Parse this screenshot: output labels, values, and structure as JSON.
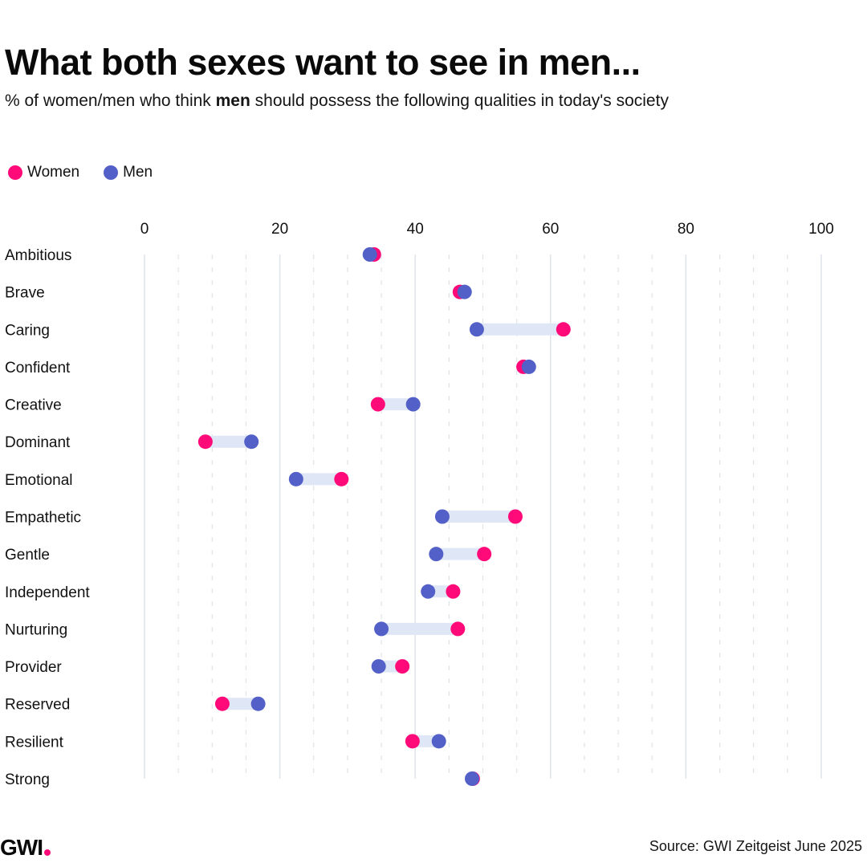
{
  "header": {
    "title": "What both sexes want to see in men...",
    "subtitle_pre": "% of women/men who think ",
    "subtitle_bold": "men",
    "subtitle_post": " should possess the following qualities in today's society"
  },
  "legend": [
    {
      "label": "Women",
      "color": "#ff0a78"
    },
    {
      "label": "Men",
      "color": "#5260c8"
    }
  ],
  "footer": {
    "logo_text": "GWI",
    "logo_dot_color": "#ff0a78",
    "source": "Source: GWI Zeitgeist June 2025"
  },
  "colors": {
    "women": "#ff0a78",
    "men": "#5260c8",
    "connector": "#dfe7f6",
    "grid": "#dfe3ec"
  },
  "chart_data": {
    "type": "dumbbell",
    "title": "What both sexes want to see in men...",
    "subtitle": "% of women/men who think men should possess the following qualities in today's society",
    "xlabel": "",
    "ylabel": "",
    "xlim": [
      0,
      100
    ],
    "x_ticks": [
      0,
      20,
      40,
      60,
      80,
      100
    ],
    "x_tick_labels": [
      "0",
      "20",
      "40",
      "60",
      "80",
      "100"
    ],
    "minor_grid_step": 5,
    "grid": true,
    "legend_position": "top-left",
    "categories": [
      "Ambitious",
      "Brave",
      "Caring",
      "Confident",
      "Creative",
      "Dominant",
      "Emotional",
      "Empathetic",
      "Gentle",
      "Independent",
      "Nurturing",
      "Provider",
      "Reserved",
      "Resilient",
      "Strong"
    ],
    "series": [
      {
        "name": "Women",
        "values": [
          33.9,
          46.6,
          61.9,
          56.0,
          34.5,
          9.0,
          29.1,
          54.8,
          50.2,
          45.6,
          46.3,
          38.1,
          11.5,
          39.6,
          48.5
        ]
      },
      {
        "name": "Men",
        "values": [
          33.3,
          47.3,
          49.1,
          56.8,
          39.7,
          15.8,
          22.4,
          44.0,
          43.1,
          41.9,
          35.0,
          34.6,
          16.8,
          43.5,
          48.4
        ]
      }
    ]
  }
}
